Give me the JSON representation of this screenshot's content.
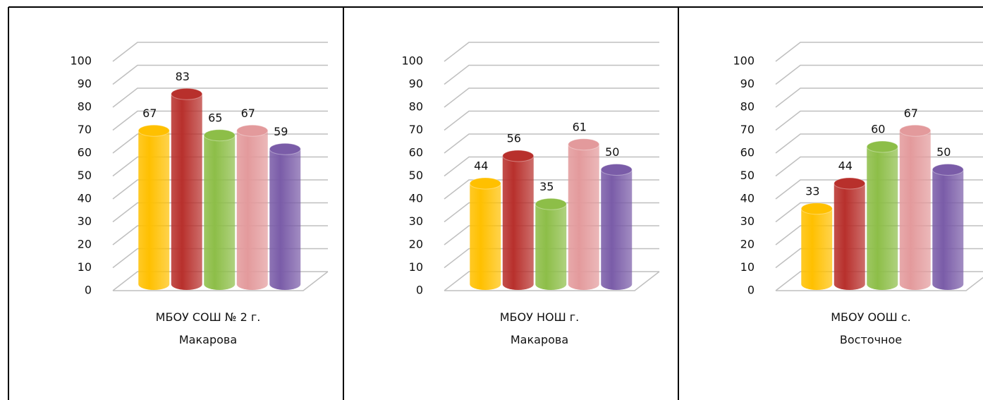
{
  "chart_data": [
    {
      "type": "bar",
      "categories": [
        "МБОУ СОШ № 2 г. Макарова"
      ],
      "ylim": [
        0,
        100
      ],
      "yticks": [
        0,
        10,
        20,
        30,
        40,
        50,
        60,
        70,
        80,
        90,
        100
      ],
      "grid": true,
      "series": [
        {
          "color": "#FFC000",
          "values": [
            67
          ]
        },
        {
          "color": "#B8302C",
          "values": [
            83
          ]
        },
        {
          "color": "#8DBE48",
          "values": [
            65
          ]
        },
        {
          "color": "#E39A9C",
          "values": [
            67
          ]
        },
        {
          "color": "#7A5CA8",
          "values": [
            59
          ]
        }
      ]
    },
    {
      "type": "bar",
      "categories": [
        "МБОУ НОШ г. Макарова"
      ],
      "ylim": [
        0,
        100
      ],
      "yticks": [
        0,
        10,
        20,
        30,
        40,
        50,
        60,
        70,
        80,
        90,
        100
      ],
      "grid": true,
      "series": [
        {
          "color": "#FFC000",
          "values": [
            44
          ]
        },
        {
          "color": "#B8302C",
          "values": [
            56
          ]
        },
        {
          "color": "#8DBE48",
          "values": [
            35
          ]
        },
        {
          "color": "#E39A9C",
          "values": [
            61
          ]
        },
        {
          "color": "#7A5CA8",
          "values": [
            50
          ]
        }
      ]
    },
    {
      "type": "bar",
      "categories": [
        "МБОУ ООШ с. Восточное"
      ],
      "ylim": [
        0,
        100
      ],
      "yticks": [
        0,
        10,
        20,
        30,
        40,
        50,
        60,
        70,
        80,
        90,
        100
      ],
      "grid": true,
      "series": [
        {
          "color": "#FFC000",
          "values": [
            33
          ]
        },
        {
          "color": "#B8302C",
          "values": [
            44
          ]
        },
        {
          "color": "#8DBE48",
          "values": [
            60
          ]
        },
        {
          "color": "#E39A9C",
          "values": [
            67
          ]
        },
        {
          "color": "#7A5CA8",
          "values": [
            50
          ]
        }
      ]
    }
  ]
}
